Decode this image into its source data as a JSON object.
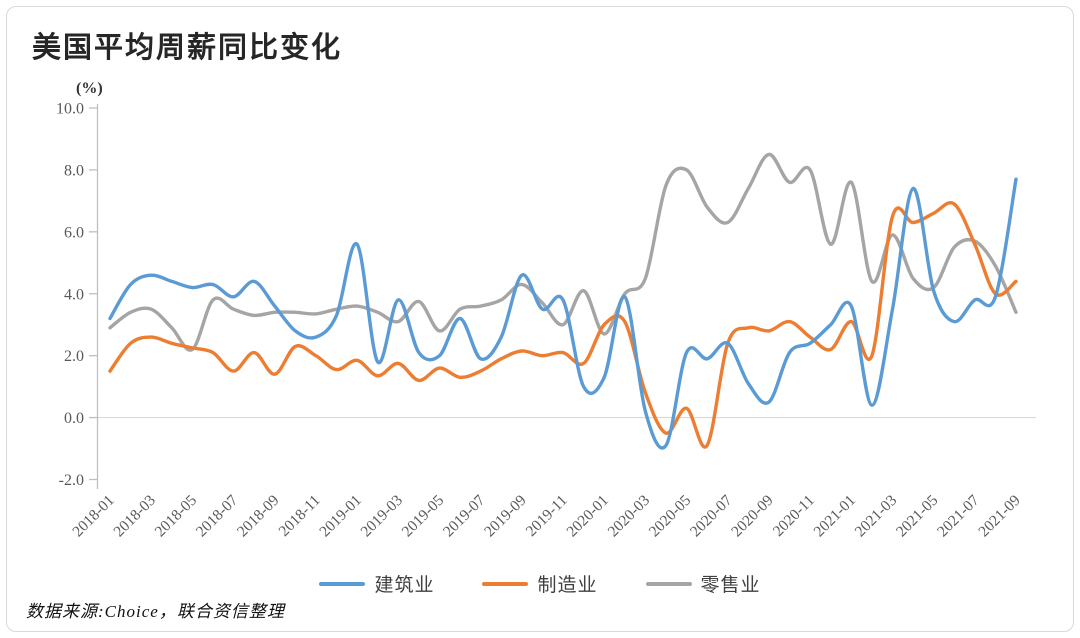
{
  "source_note": "数据来源:Choice，联合资信整理",
  "chart_data": {
    "type": "line",
    "title": "美国平均周薪同比变化",
    "unit_label": "(%)",
    "ylim": [
      -2.0,
      10.0
    ],
    "y_ticks": [
      "10.0",
      "8.0",
      "6.0",
      "4.0",
      "2.0",
      "0.0",
      "-2.0"
    ],
    "grid": "zero-line-only",
    "legend_position": "bottom",
    "x_tick_every": 2,
    "line_smoothing": true,
    "x": [
      "2018-01",
      "2018-02",
      "2018-03",
      "2018-04",
      "2018-05",
      "2018-06",
      "2018-07",
      "2018-08",
      "2018-09",
      "2018-10",
      "2018-11",
      "2018-12",
      "2019-01",
      "2019-02",
      "2019-03",
      "2019-04",
      "2019-05",
      "2019-06",
      "2019-07",
      "2019-08",
      "2019-09",
      "2019-10",
      "2019-11",
      "2019-12",
      "2020-01",
      "2020-02",
      "2020-03",
      "2020-04",
      "2020-05",
      "2020-06",
      "2020-07",
      "2020-08",
      "2020-09",
      "2020-10",
      "2020-11",
      "2020-12",
      "2021-01",
      "2021-02",
      "2021-03",
      "2021-04",
      "2021-05",
      "2021-06",
      "2021-07",
      "2021-08",
      "2021-09"
    ],
    "series": [
      {
        "key": "construction",
        "name": "建筑业",
        "color": "#5B9BD5",
        "values": [
          3.2,
          4.3,
          4.6,
          4.4,
          4.2,
          4.3,
          3.9,
          4.4,
          3.6,
          2.8,
          2.6,
          3.3,
          5.6,
          1.8,
          3.8,
          2.1,
          2.0,
          3.2,
          1.9,
          2.6,
          4.6,
          3.5,
          3.8,
          1.0,
          1.3,
          3.9,
          0.2,
          -0.9,
          2.1,
          1.9,
          2.4,
          1.1,
          0.5,
          2.1,
          2.4,
          3.0,
          3.6,
          0.4,
          3.5,
          7.4,
          4.1,
          3.1,
          3.8,
          3.9,
          7.7
        ]
      },
      {
        "key": "manufacturing",
        "name": "制造业",
        "color": "#ED7D31",
        "values": [
          1.5,
          2.4,
          2.6,
          2.4,
          2.25,
          2.1,
          1.5,
          2.1,
          1.4,
          2.3,
          2.0,
          1.55,
          1.85,
          1.35,
          1.75,
          1.2,
          1.6,
          1.3,
          1.5,
          1.9,
          2.15,
          2.0,
          2.1,
          1.75,
          3.0,
          3.1,
          0.8,
          -0.5,
          0.3,
          -0.9,
          2.4,
          2.9,
          2.8,
          3.1,
          2.6,
          2.2,
          3.1,
          2.0,
          6.5,
          6.3,
          6.6,
          6.9,
          5.6,
          4.0,
          4.4
        ]
      },
      {
        "key": "retail",
        "name": "零售业",
        "color": "#A5A5A5",
        "values": [
          2.9,
          3.4,
          3.5,
          2.9,
          2.2,
          3.8,
          3.5,
          3.3,
          3.4,
          3.4,
          3.35,
          3.5,
          3.6,
          3.4,
          3.1,
          3.75,
          2.8,
          3.5,
          3.6,
          3.8,
          4.3,
          3.7,
          3.0,
          4.1,
          2.7,
          4.0,
          4.5,
          7.5,
          8.0,
          6.8,
          6.3,
          7.4,
          8.5,
          7.6,
          8.0,
          5.6,
          7.6,
          4.4,
          5.9,
          4.5,
          4.2,
          5.5,
          5.7,
          4.9,
          3.4
        ]
      }
    ]
  }
}
